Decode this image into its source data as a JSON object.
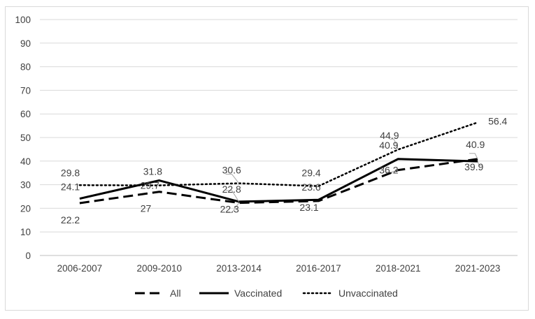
{
  "chart_data": {
    "type": "line",
    "title": "",
    "xlabel": "",
    "ylabel": "",
    "ylim": [
      0,
      100
    ],
    "yticks": [
      0,
      10,
      20,
      30,
      40,
      50,
      60,
      70,
      80,
      90,
      100
    ],
    "grid": true,
    "legend_position": "bottom",
    "categories": [
      "2006-2007",
      "2009-2010",
      "2013-2014",
      "2016-2017",
      "2018-2021",
      "2021-2023"
    ],
    "series": [
      {
        "name": "All",
        "style": "dashed",
        "color": "#000000",
        "values": [
          22.2,
          27,
          22.3,
          23.1,
          36.2,
          40.9
        ]
      },
      {
        "name": "Vaccinated",
        "style": "solid",
        "color": "#000000",
        "values": [
          24.1,
          31.8,
          22.8,
          23.6,
          40.9,
          39.9
        ]
      },
      {
        "name": "Unvaccinated",
        "style": "dotted",
        "color": "#000000",
        "values": [
          29.8,
          29.7,
          30.6,
          29.4,
          44.9,
          56.4
        ]
      }
    ]
  }
}
